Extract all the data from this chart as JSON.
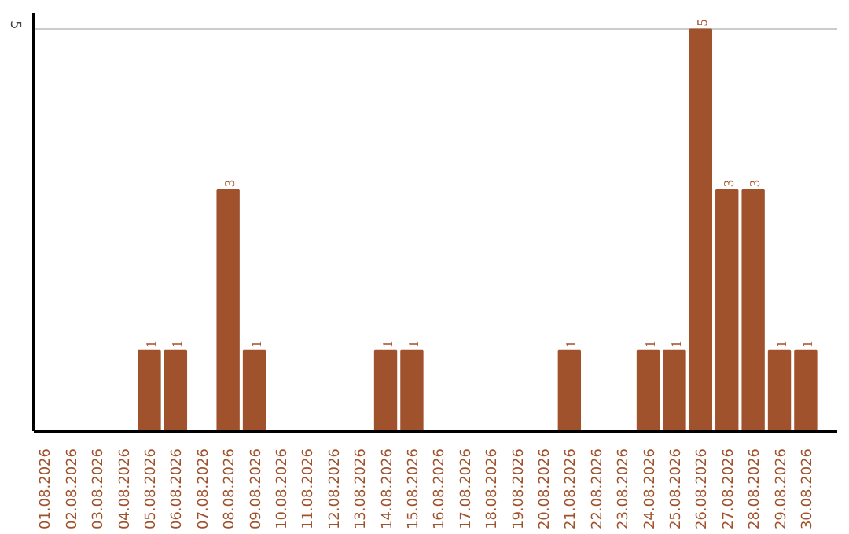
{
  "chart_data": {
    "type": "bar",
    "categories": [
      "01.08.2026",
      "02.08.2026",
      "03.08.2026",
      "04.08.2026",
      "05.08.2026",
      "06.08.2026",
      "07.08.2026",
      "08.08.2026",
      "09.08.2026",
      "10.08.2026",
      "11.08.2026",
      "12.08.2026",
      "13.08.2026",
      "14.08.2026",
      "15.08.2026",
      "16.08.2026",
      "17.08.2026",
      "18.08.2026",
      "19.08.2026",
      "20.08.2026",
      "21.08.2026",
      "22.08.2026",
      "23.08.2026",
      "24.08.2026",
      "25.08.2026",
      "26.08.2026",
      "27.08.2026",
      "28.08.2026",
      "29.08.2026",
      "30.08.2026"
    ],
    "values": [
      0,
      0,
      0,
      0,
      1,
      1,
      0,
      3,
      1,
      0,
      0,
      0,
      0,
      1,
      1,
      0,
      0,
      0,
      0,
      0,
      1,
      0,
      0,
      1,
      1,
      5,
      3,
      3,
      1,
      1
    ],
    "value_labels": [
      null,
      null,
      null,
      null,
      "1",
      "1",
      null,
      "3",
      "1",
      null,
      null,
      null,
      null,
      "1",
      "1",
      null,
      null,
      null,
      null,
      null,
      "1",
      null,
      null,
      "1",
      "1",
      "5",
      "3",
      "3",
      "1",
      "1"
    ],
    "color": "#a0522d",
    "ylim": [
      0,
      5.2
    ],
    "yticks": [
      5
    ],
    "grid": "y"
  }
}
